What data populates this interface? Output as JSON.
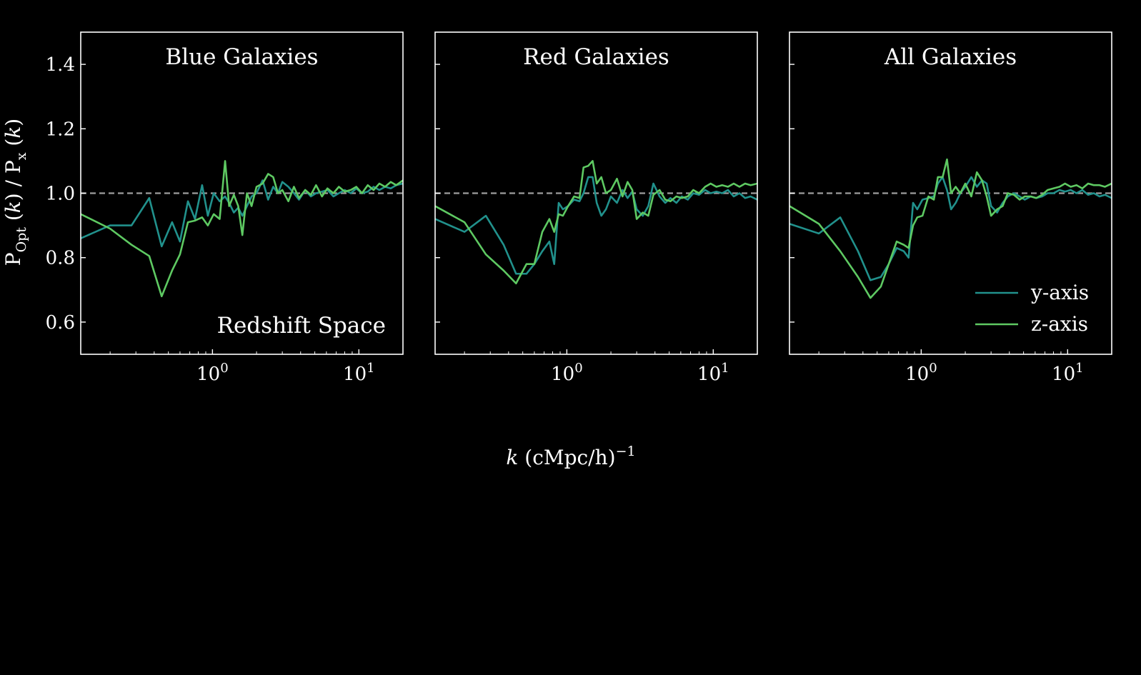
{
  "figure": {
    "background": "#000000",
    "foreground": "#ffffff",
    "shared_xlabel_prefix": "k",
    "shared_xlabel_suffix": " (cMpc/h)",
    "shared_xlabel_exponent": "−1",
    "shared_ylabel": "P_Opt (k) / P_x (k)",
    "reference_line": {
      "y": 1.0,
      "style": "dashed",
      "color": "#9e9e9e"
    },
    "series_colors": {
      "y-axis": "#21918c",
      "z-axis": "#5ec962"
    }
  },
  "chart_data": [
    {
      "type": "line",
      "title": "Blue Galaxies",
      "annotation": "Redshift Space",
      "xscale": "log",
      "xlim": [
        0.126,
        20
      ],
      "ylim": [
        0.5,
        1.5
      ],
      "yticks": [
        0.6,
        0.8,
        1.0,
        1.2,
        1.4
      ],
      "ytick_labels": [
        "0.6",
        "0.8",
        "1.0",
        "1.2",
        "1.4"
      ],
      "xticks": [
        1,
        10
      ],
      "xtick_labels": [
        "10^0",
        "10^1"
      ],
      "legend": false,
      "series": [
        {
          "name": "y-axis",
          "color": "#21918c",
          "x": [
            0.126,
            0.2,
            0.28,
            0.37,
            0.45,
            0.53,
            0.6,
            0.68,
            0.76,
            0.85,
            0.93,
            1.02,
            1.12,
            1.22,
            1.3,
            1.4,
            1.5,
            1.6,
            1.72,
            1.85,
            2.0,
            2.2,
            2.4,
            2.6,
            2.8,
            3.0,
            3.3,
            3.6,
            3.9,
            4.3,
            4.7,
            5.1,
            5.6,
            6.1,
            6.7,
            7.3,
            8.0,
            8.8,
            9.6,
            10.5,
            11.5,
            12.6,
            13.8,
            15.1,
            16.5,
            18.0,
            20.0
          ],
          "y": [
            0.86,
            0.9,
            0.9,
            0.985,
            0.835,
            0.91,
            0.85,
            0.975,
            0.92,
            1.025,
            0.93,
            1.0,
            0.975,
            0.99,
            0.97,
            0.94,
            0.955,
            0.93,
            0.96,
            0.99,
            1.0,
            1.04,
            0.98,
            1.02,
            1.0,
            1.035,
            1.02,
            1.0,
            0.98,
            1.01,
            0.99,
            1.0,
            1.005,
            1.01,
            0.99,
            1.0,
            1.01,
            1.0,
            1.015,
            1.0,
            1.005,
            1.02,
            1.01,
            1.02,
            1.015,
            1.025,
            1.03
          ]
        },
        {
          "name": "z-axis",
          "color": "#5ec962",
          "x": [
            0.126,
            0.2,
            0.28,
            0.37,
            0.45,
            0.53,
            0.6,
            0.68,
            0.76,
            0.85,
            0.93,
            1.02,
            1.12,
            1.22,
            1.3,
            1.4,
            1.5,
            1.6,
            1.72,
            1.85,
            2.0,
            2.2,
            2.4,
            2.6,
            2.8,
            3.0,
            3.3,
            3.6,
            3.9,
            4.3,
            4.7,
            5.1,
            5.6,
            6.1,
            6.7,
            7.3,
            8.0,
            8.8,
            9.6,
            10.5,
            11.5,
            12.6,
            13.8,
            15.1,
            16.5,
            18.0,
            20.0
          ],
          "y": [
            0.935,
            0.89,
            0.84,
            0.805,
            0.68,
            0.76,
            0.81,
            0.91,
            0.915,
            0.925,
            0.9,
            0.935,
            0.92,
            1.1,
            0.96,
            0.995,
            0.96,
            0.87,
            1.0,
            0.96,
            1.02,
            1.03,
            1.06,
            1.05,
            1.0,
            1.01,
            0.975,
            1.02,
            0.985,
            1.01,
            0.995,
            1.025,
            0.99,
            1.015,
            1.0,
            1.02,
            1.005,
            1.01,
            1.02,
            1.0,
            1.025,
            1.01,
            1.03,
            1.02,
            1.035,
            1.025,
            1.04
          ]
        }
      ]
    },
    {
      "type": "line",
      "title": "Red Galaxies",
      "xscale": "log",
      "xlim": [
        0.126,
        20
      ],
      "ylim": [
        0.5,
        1.5
      ],
      "yticks": [
        0.6,
        0.8,
        1.0,
        1.2,
        1.4
      ],
      "xticks": [
        1,
        10
      ],
      "xtick_labels": [
        "10^0",
        "10^1"
      ],
      "legend": false,
      "series": [
        {
          "name": "y-axis",
          "color": "#21918c",
          "x": [
            0.126,
            0.2,
            0.28,
            0.37,
            0.45,
            0.53,
            0.6,
            0.68,
            0.76,
            0.82,
            0.88,
            0.94,
            1.02,
            1.12,
            1.22,
            1.3,
            1.4,
            1.5,
            1.6,
            1.72,
            1.85,
            2.0,
            2.2,
            2.4,
            2.6,
            2.8,
            3.0,
            3.3,
            3.6,
            3.9,
            4.3,
            4.7,
            5.1,
            5.6,
            6.1,
            6.7,
            7.3,
            8.0,
            8.8,
            9.6,
            10.5,
            11.5,
            12.6,
            13.8,
            15.1,
            16.5,
            18.0,
            20.0
          ],
          "y": [
            0.92,
            0.88,
            0.93,
            0.84,
            0.75,
            0.75,
            0.78,
            0.82,
            0.85,
            0.78,
            0.97,
            0.95,
            0.96,
            0.98,
            0.975,
            1.0,
            1.05,
            1.05,
            0.97,
            0.93,
            0.95,
            0.99,
            0.97,
            1.01,
            0.985,
            1.005,
            0.95,
            0.93,
            0.96,
            1.03,
            0.99,
            0.97,
            0.985,
            0.97,
            0.99,
            0.98,
            1.0,
            0.995,
            1.01,
            1.0,
            1.005,
            1.0,
            1.01,
            0.99,
            1.0,
            0.985,
            0.99,
            0.98
          ]
        },
        {
          "name": "z-axis",
          "color": "#5ec962",
          "x": [
            0.126,
            0.2,
            0.28,
            0.37,
            0.45,
            0.53,
            0.6,
            0.68,
            0.76,
            0.82,
            0.88,
            0.94,
            1.02,
            1.12,
            1.22,
            1.3,
            1.4,
            1.5,
            1.6,
            1.72,
            1.85,
            2.0,
            2.2,
            2.4,
            2.6,
            2.8,
            3.0,
            3.3,
            3.6,
            3.9,
            4.3,
            4.7,
            5.1,
            5.6,
            6.1,
            6.7,
            7.3,
            8.0,
            8.8,
            9.6,
            10.5,
            11.5,
            12.6,
            13.8,
            15.1,
            16.5,
            18.0,
            20.0
          ],
          "y": [
            0.96,
            0.91,
            0.81,
            0.76,
            0.72,
            0.78,
            0.78,
            0.88,
            0.92,
            0.88,
            0.935,
            0.93,
            0.96,
            0.99,
            0.985,
            1.08,
            1.085,
            1.1,
            1.03,
            1.05,
            1.0,
            1.01,
            1.045,
            0.99,
            1.035,
            1.01,
            0.92,
            0.94,
            0.93,
            0.995,
            1.01,
            0.98,
            0.975,
            0.99,
            0.985,
            0.99,
            1.01,
            1.0,
            1.02,
            1.03,
            1.02,
            1.025,
            1.02,
            1.03,
            1.02,
            1.03,
            1.025,
            1.03
          ]
        }
      ]
    },
    {
      "type": "line",
      "title": "All Galaxies",
      "xscale": "log",
      "xlim": [
        0.126,
        20
      ],
      "ylim": [
        0.5,
        1.5
      ],
      "yticks": [
        0.6,
        0.8,
        1.0,
        1.2,
        1.4
      ],
      "xticks": [
        1,
        10
      ],
      "xtick_labels": [
        "10^0",
        "10^1"
      ],
      "legend": true,
      "legend_position": "lower right",
      "series": [
        {
          "name": "y-axis",
          "color": "#21918c",
          "x": [
            0.126,
            0.2,
            0.28,
            0.37,
            0.45,
            0.53,
            0.6,
            0.68,
            0.76,
            0.82,
            0.88,
            0.94,
            1.02,
            1.12,
            1.22,
            1.3,
            1.4,
            1.5,
            1.6,
            1.72,
            1.85,
            2.0,
            2.2,
            2.4,
            2.6,
            2.8,
            3.0,
            3.3,
            3.6,
            3.9,
            4.3,
            4.7,
            5.1,
            5.6,
            6.1,
            6.7,
            7.3,
            8.0,
            8.8,
            9.6,
            10.5,
            11.5,
            12.6,
            13.8,
            15.1,
            16.5,
            18.0,
            20.0
          ],
          "y": [
            0.905,
            0.875,
            0.925,
            0.82,
            0.73,
            0.74,
            0.78,
            0.83,
            0.82,
            0.8,
            0.97,
            0.95,
            0.98,
            0.985,
            0.99,
            1.03,
            1.05,
            1.01,
            0.95,
            0.97,
            1.0,
            1.02,
            1.05,
            1.02,
            1.04,
            1.03,
            0.96,
            0.94,
            0.97,
            0.99,
            1.0,
            0.99,
            0.98,
            0.99,
            0.985,
            0.99,
            1.0,
            1.0,
            1.01,
            1.005,
            1.01,
            1.0,
            1.01,
            0.995,
            1.0,
            0.99,
            0.995,
            0.985
          ]
        },
        {
          "name": "z-axis",
          "color": "#5ec962",
          "x": [
            0.126,
            0.2,
            0.28,
            0.37,
            0.45,
            0.53,
            0.6,
            0.68,
            0.76,
            0.82,
            0.88,
            0.94,
            1.02,
            1.12,
            1.22,
            1.3,
            1.4,
            1.5,
            1.6,
            1.72,
            1.85,
            2.0,
            2.2,
            2.4,
            2.6,
            2.8,
            3.0,
            3.3,
            3.6,
            3.9,
            4.3,
            4.7,
            5.1,
            5.6,
            6.1,
            6.7,
            7.3,
            8.0,
            8.8,
            9.6,
            10.5,
            11.5,
            12.6,
            13.8,
            15.1,
            16.5,
            18.0,
            20.0
          ],
          "y": [
            0.96,
            0.905,
            0.82,
            0.74,
            0.675,
            0.71,
            0.78,
            0.85,
            0.84,
            0.83,
            0.9,
            0.925,
            0.93,
            0.99,
            0.98,
            1.05,
            1.05,
            1.105,
            1.0,
            1.02,
            1.0,
            1.03,
            0.99,
            1.065,
            1.04,
            0.99,
            0.93,
            0.95,
            0.96,
            1.0,
            0.995,
            0.98,
            0.99,
            0.99,
            0.985,
            0.995,
            1.01,
            1.015,
            1.02,
            1.03,
            1.02,
            1.025,
            1.015,
            1.03,
            1.025,
            1.025,
            1.02,
            1.03
          ]
        }
      ]
    }
  ]
}
